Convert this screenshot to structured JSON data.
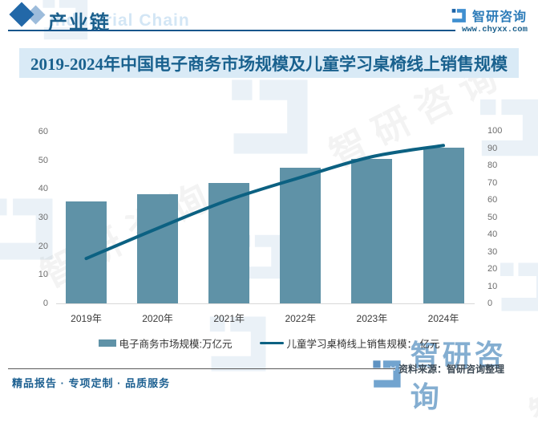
{
  "header": {
    "section_title": "产业链",
    "section_title_en": "Industrial Chain",
    "brand_name": "智研咨询",
    "brand_url": "www.chyxx.com"
  },
  "chart_title": "2019-2024年中国电子商务市场规模及儿童学习桌椅线上销售规模",
  "chart_data": {
    "type": "bar",
    "categories": [
      "2019年",
      "2020年",
      "2021年",
      "2022年",
      "2023年",
      "2024年"
    ],
    "series": [
      {
        "name": "电子商务市场规模:万亿元",
        "type": "bar",
        "axis": "left",
        "values": [
          35.5,
          38,
          42,
          47.5,
          50.5,
          54.5
        ],
        "color": "#5f92a7"
      },
      {
        "name": "儿童学习桌椅线上销售规模： 亿元",
        "type": "line",
        "axis": "right",
        "values": [
          26,
          43.5,
          60,
          73,
          85,
          91.5
        ],
        "color": "#0c6182"
      }
    ],
    "left_axis": {
      "ticks": [
        0,
        10,
        20,
        30,
        40,
        50,
        60
      ],
      "range": [
        0,
        60
      ]
    },
    "right_axis": {
      "ticks": [
        0,
        10,
        20,
        30,
        40,
        50,
        60,
        70,
        80,
        90,
        100
      ],
      "range": [
        0,
        100
      ]
    },
    "legend_position": "bottom",
    "grid": false,
    "title": "2019-2024年中国电子商务市场规模及儿童学习桌椅线上销售规模"
  },
  "source": {
    "label": "资料来源：智研咨询整理"
  },
  "footer": {
    "tagline": "精品报告 · 专项定制 · 品质服务"
  },
  "watermark": {
    "brand": "智研咨询",
    "url": "www.chyxx.com"
  },
  "colors": {
    "accent": "#1a5f8c",
    "bar": "#5f92a7",
    "line": "#0c6182",
    "title_band_bg": "#d9eaf6",
    "brand_blue": "#2d7cb9"
  }
}
